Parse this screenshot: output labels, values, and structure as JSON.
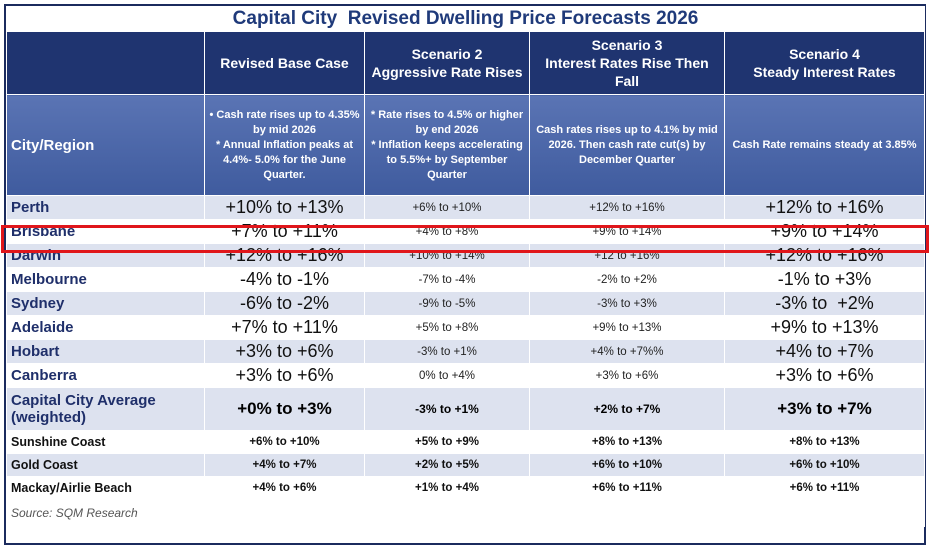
{
  "header": {
    "title": "Capital City  Revised Dwelling Price Forecasts 2026"
  },
  "table": {
    "city_header": "City/Region",
    "columns": [
      {
        "title": "Revised Base Case",
        "description": "• Cash rate rises up to 4.35% by mid 2026\n* Annual Inflation peaks at 4.4%- 5.0% for the June Quarter."
      },
      {
        "title": "Scenario 2\nAggressive Rate Rises",
        "description": "* Rate rises to 4.5% or higher by end 2026\n* Inflation keeps accelerating to 5.5%+  by September Quarter"
      },
      {
        "title": "Scenario 3\nInterest Rates Rise Then Fall",
        "description": "Cash rates rises up to 4.1% by mid 2026. Then cash rate cut(s) by December Quarter"
      },
      {
        "title": "Scenario 4\nSteady Interest Rates",
        "description": "Cash Rate remains steady at 3.85%"
      }
    ],
    "rows": [
      [
        "Perth",
        "+10% to +13%",
        "+6% to +10%",
        "+12% to +16%",
        "+12% to +16%"
      ],
      [
        "Brisbane",
        "+7% to +11%",
        "+4% to +8%",
        "+9% to +14%",
        "+9% to +14%"
      ],
      [
        "Darwin",
        "+12% to +16%",
        "+10% to +14%",
        "+12 to +16%",
        "+12% to +16%"
      ],
      [
        "Melbourne",
        "-4% to -1%",
        "-7% to -4%",
        "-2% to +2%",
        "-1% to +3%"
      ],
      [
        "Sydney",
        "-6% to -2%",
        "-9% to -5%",
        "-3% to +3%",
        "-3% to  +2%"
      ],
      [
        "Adelaide",
        "+7% to +11%",
        "+5% to +8%",
        "+9% to +13%",
        "+9% to +13%"
      ],
      [
        "Hobart",
        "+3% to +6%",
        "-3% to +1%",
        "+4% to +7%%",
        "+4% to +7%"
      ],
      [
        "Canberra",
        "+3% to +6%",
        "0% to +4%",
        "+3% to +6%",
        "+3% to +6%"
      ],
      [
        "Capital City Average (weighted)",
        "+0% to +3%",
        "-3% to +1%",
        "+2% to +7%",
        "+3% to +7%"
      ],
      [
        "Sunshine Coast",
        "+6% to +10%",
        "+5% to +9%",
        "+8% to +13%",
        "+8% to +13%"
      ],
      [
        "Gold Coast",
        "+4% to +7%",
        "+2% to +5%",
        "+6% to +10%",
        "+6% to +10%"
      ],
      [
        "Mackay/Airlie Beach",
        "+4% to +6%",
        "+1% to +4%",
        "+6% to +11%",
        "+6% to +11%"
      ]
    ]
  },
  "footer": {
    "source": "Source: SQM Research"
  }
}
